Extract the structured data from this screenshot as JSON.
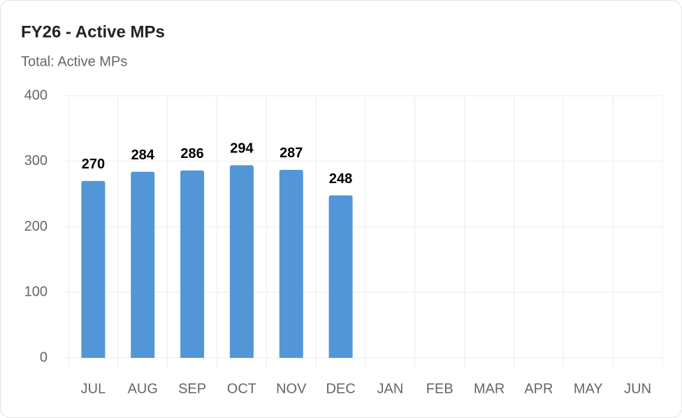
{
  "chart_data": {
    "type": "bar",
    "title": "FY26 - Active MPs",
    "subtitle": "Total: Active MPs",
    "categories": [
      "JUL",
      "AUG",
      "SEP",
      "OCT",
      "NOV",
      "DEC",
      "JAN",
      "FEB",
      "MAR",
      "APR",
      "MAY",
      "JUN"
    ],
    "values": [
      270,
      284,
      286,
      294,
      287,
      248,
      null,
      null,
      null,
      null,
      null,
      null
    ],
    "color": "#5296d8",
    "ylim": [
      0,
      400
    ],
    "yticks": [
      0,
      100,
      200,
      300,
      400
    ],
    "grid": true
  }
}
